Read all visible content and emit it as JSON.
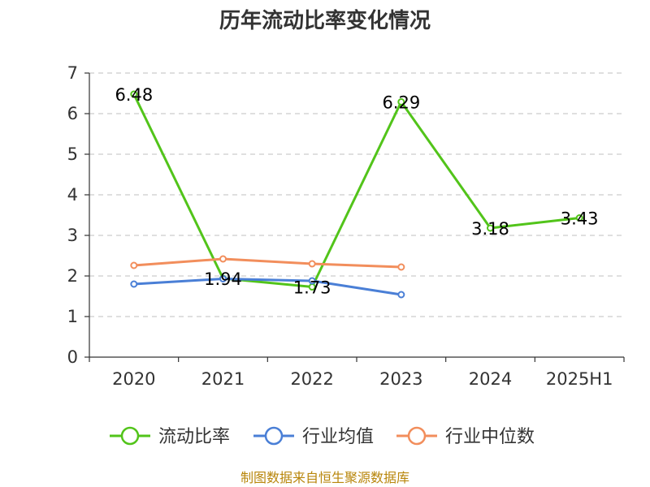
{
  "chart_data": {
    "type": "line",
    "title": "历年流动比率变化情况",
    "categories": [
      "2020",
      "2021",
      "2022",
      "2023",
      "2024",
      "2025H1"
    ],
    "ylim": [
      0,
      7
    ],
    "yticks": [
      "0",
      "1",
      "2",
      "3",
      "4",
      "5",
      "6",
      "7"
    ],
    "grid": true,
    "legend_position": "bottom",
    "series": [
      {
        "name": "流动比率",
        "color": "#52c41a",
        "values": [
          6.48,
          1.94,
          1.73,
          6.29,
          3.18,
          3.43
        ],
        "labels": [
          "6.48",
          "1.94",
          "1.73",
          "6.29",
          "3.18",
          "3.43"
        ]
      },
      {
        "name": "行业均值",
        "color": "#4a7fd6",
        "values": [
          1.8,
          1.93,
          1.88,
          1.54,
          null,
          null
        ]
      },
      {
        "name": "行业中位数",
        "color": "#f28e5c",
        "values": [
          2.26,
          2.42,
          2.3,
          2.22,
          null,
          null
        ]
      }
    ]
  },
  "source_text": "制图数据来自恒生聚源数据库"
}
